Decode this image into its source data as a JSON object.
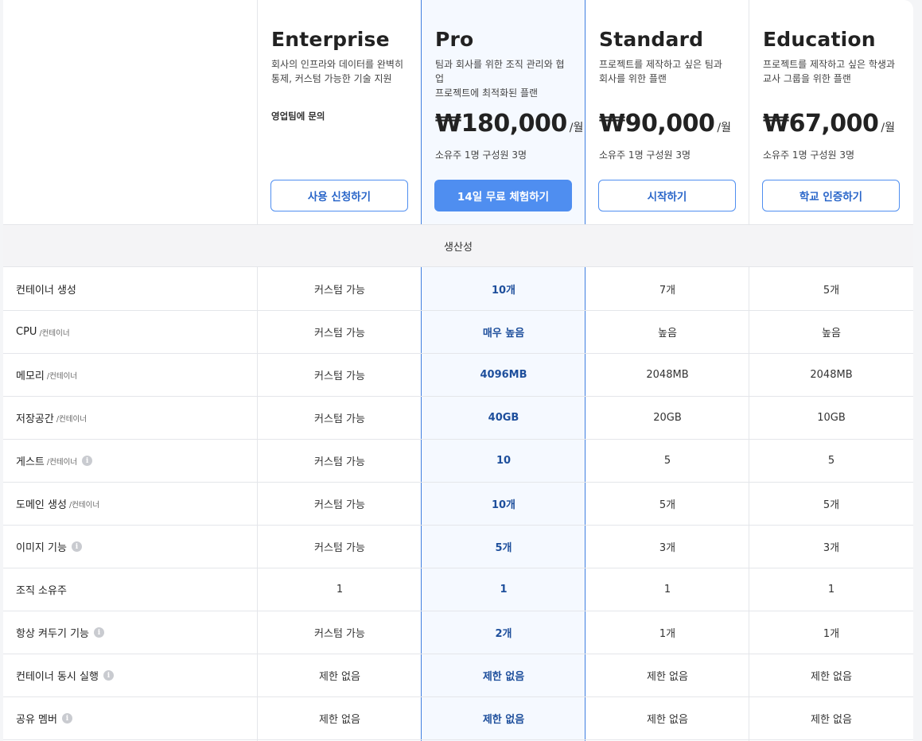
{
  "plans": [
    {
      "key": "ent",
      "name": "Enterprise",
      "desc_line1": "회사의 인프라와 데이터를 완벽히",
      "desc_line2": "통제, 커스텀 가능한 기술 지원",
      "contact": "영업팀에 문의",
      "button": "사용 신청하기"
    },
    {
      "key": "pro",
      "name": "Pro",
      "desc_line1": "팀과 회사를 위한 조직 관리와 협업",
      "desc_line2": "프로젝트에 최적화된 플랜",
      "price": "₩180,000",
      "per": "/월",
      "sub": "소유주 1명 구성원 3명",
      "button": "14일 무료 체험하기"
    },
    {
      "key": "std",
      "name": "Standard",
      "desc_line1": "프로젝트를 제작하고 싶은 팀과",
      "desc_line2": "회사를 위한 플랜",
      "price": "₩90,000",
      "per": "/월",
      "sub": "소유주 1명 구성원 3명",
      "button": "시작하기"
    },
    {
      "key": "edu",
      "name": "Education",
      "desc_line1": "프로젝트를 제작하고 싶은 학생과",
      "desc_line2": "교사 그룹을 위한 플랜",
      "price": "₩67,000",
      "per": "/월",
      "sub": "소유주 1명 구성원 3명",
      "button": "학교 인증하기"
    }
  ],
  "section_title": "생산성",
  "rows": [
    {
      "label": "컨테이너 생성",
      "unit": "",
      "info": false,
      "ent": "커스텀 가능",
      "pro": "10개",
      "std": "7개",
      "edu": "5개"
    },
    {
      "label": "CPU",
      "unit": "/컨테이너",
      "info": false,
      "ent": "커스텀 가능",
      "pro": "매우 높음",
      "std": "높음",
      "edu": "높음"
    },
    {
      "label": "메모리",
      "unit": "/컨테이너",
      "info": false,
      "ent": "커스텀 가능",
      "pro": "4096MB",
      "std": "2048MB",
      "edu": "2048MB"
    },
    {
      "label": "저장공간",
      "unit": "/컨테이너",
      "info": false,
      "ent": "커스텀 가능",
      "pro": "40GB",
      "std": "20GB",
      "edu": "10GB"
    },
    {
      "label": "게스트",
      "unit": "/컨테이너",
      "info": true,
      "ent": "커스텀 가능",
      "pro": "10",
      "std": "5",
      "edu": "5"
    },
    {
      "label": "도메인 생성",
      "unit": "/컨테이너",
      "info": false,
      "ent": "커스텀 가능",
      "pro": "10개",
      "std": "5개",
      "edu": "5개"
    },
    {
      "label": "이미지 기능",
      "unit": "",
      "info": true,
      "ent": "커스텀 가능",
      "pro": "5개",
      "std": "3개",
      "edu": "3개"
    },
    {
      "label": "조직 소유주",
      "unit": "",
      "info": false,
      "ent": "1",
      "pro": "1",
      "std": "1",
      "edu": "1"
    },
    {
      "label": "항상 켜두기 기능",
      "unit": "",
      "info": true,
      "ent": "커스텀 가능",
      "pro": "2개",
      "std": "1개",
      "edu": "1개"
    },
    {
      "label": "컨테이너 동시 실행",
      "unit": "",
      "info": true,
      "ent": "제한 없음",
      "pro": "제한 없음",
      "std": "제한 없음",
      "edu": "제한 없음"
    },
    {
      "label": "공유 멤버",
      "unit": "",
      "info": true,
      "ent": "제한 없음",
      "pro": "제한 없음",
      "std": "제한 없음",
      "edu": "제한 없음"
    }
  ],
  "info_glyph": "i",
  "colors": {
    "accent": "#4f8ef0",
    "pro_value": "#1e4f9c",
    "pro_bg": "#f5f9ff"
  }
}
